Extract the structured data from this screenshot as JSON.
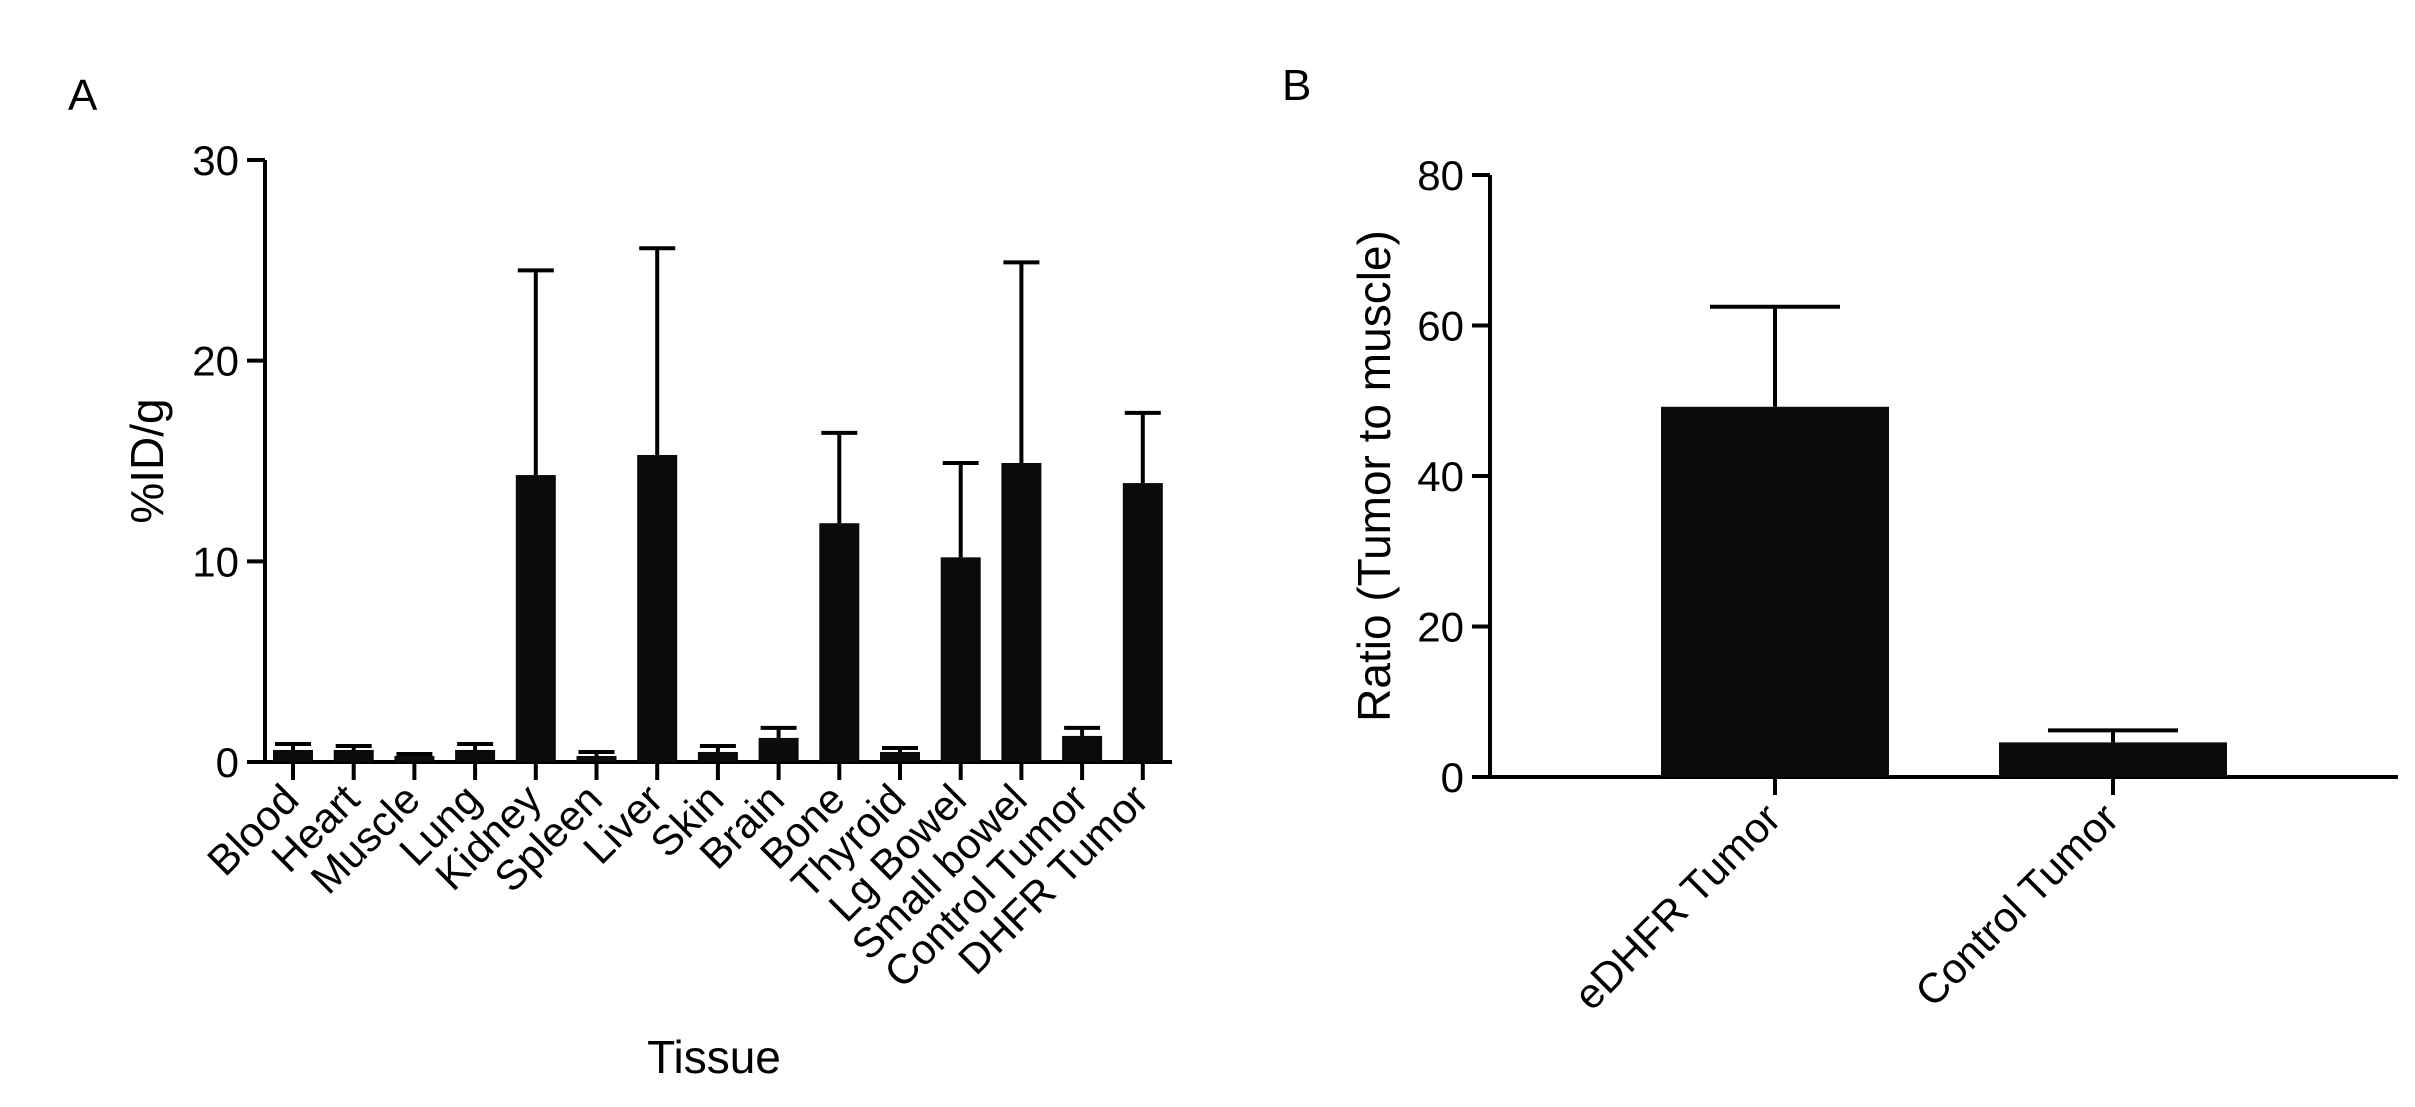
{
  "colors": {
    "bar": "#0a0c0a",
    "axis": "#000000"
  },
  "chart_data": [
    {
      "panel": "A",
      "type": "bar",
      "title": "",
      "xlabel": "Tissue",
      "ylabel": "%ID/g",
      "ylim": [
        0,
        30
      ],
      "yticks": [
        0,
        10,
        20,
        30
      ],
      "categories": [
        "Blood",
        "Heart",
        "Muscle",
        "Lung",
        "Kidney",
        "Spleen",
        "Liver",
        "Skin",
        "Brain",
        "Bone",
        "Thyroid",
        "Lg Bowel",
        "Small bowel",
        "Control Tumor",
        "DHFR Tumor"
      ],
      "values": [
        0.6,
        0.6,
        0.3,
        0.6,
        14.3,
        0.3,
        15.3,
        0.5,
        1.2,
        11.9,
        0.5,
        10.2,
        14.9,
        1.3,
        13.9
      ],
      "error": [
        0.3,
        0.2,
        0.1,
        0.3,
        10.2,
        0.2,
        10.3,
        0.3,
        0.5,
        4.5,
        0.2,
        4.7,
        10.0,
        0.4,
        3.5
      ]
    },
    {
      "panel": "B",
      "type": "bar",
      "title": "",
      "xlabel": "",
      "ylabel": "Ratio (Tumor to muscle)",
      "ylim": [
        0,
        80
      ],
      "yticks": [
        0,
        20,
        40,
        60,
        80
      ],
      "categories": [
        "eDHFR Tumor",
        "Control Tumor"
      ],
      "values": [
        49.2,
        4.6
      ],
      "error": [
        13.3,
        1.6
      ]
    }
  ]
}
